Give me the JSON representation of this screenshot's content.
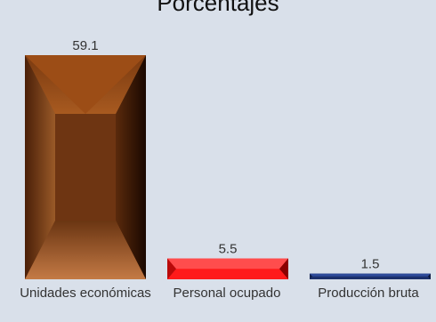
{
  "chart_data": {
    "type": "bar",
    "title": "Porcentajes",
    "categories": [
      "Unidades económicas",
      "Personal ocupado",
      "Producción bruta"
    ],
    "values": [
      59.1,
      5.5,
      1.5
    ],
    "ylim": [
      0,
      59.1
    ],
    "grid": false,
    "legend": "none",
    "colors": [
      "#8a4a1e",
      "#ff1a1a",
      "#1b2f6b"
    ]
  }
}
